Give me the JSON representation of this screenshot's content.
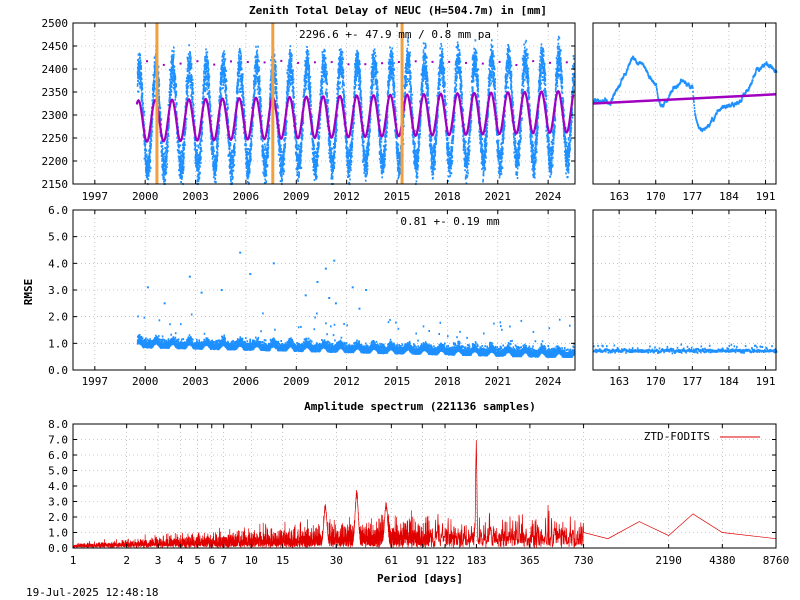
{
  "top_title": "Zenith Total Delay of NEUC (H=504.7m) in [mm]",
  "spectrum_title": "Amplitude spectrum (221136 samples)",
  "timestamp": "19-Jul-2025 12:48:18",
  "colors": {
    "data": "#1e90ff",
    "fit": "#a000c0",
    "break": "#f0a040",
    "spectrum": "#e00000",
    "grid": "#a0a0a0"
  },
  "chart_data": [
    {
      "id": "ztd",
      "type": "scatter",
      "annotation": "2296.6 +-  47.9 mm /  0.8 mm pa",
      "ylim": [
        2150,
        2500
      ],
      "yticks": [
        "2150",
        "2200",
        "2250",
        "2300",
        "2350",
        "2400",
        "2450",
        "2500"
      ],
      "xlim": [
        1995.7,
        2025.6
      ],
      "xticks": [
        "1997",
        "2000",
        "2003",
        "2006",
        "2009",
        "2012",
        "2015",
        "2018",
        "2021",
        "2024"
      ],
      "data_start": 1999.5,
      "data_end": 2025.5,
      "mean": 2296.6,
      "seasonal_amplitude": 47.9,
      "seasonal_peak": 2400,
      "seasonal_trough": 2190,
      "fit_amplitude": 45,
      "trend_per_year": 0.8,
      "breaks": [
        2000.7,
        2007.6,
        2015.3
      ]
    },
    {
      "id": "ztd_zoom",
      "type": "scatter",
      "xlim": [
        158,
        193
      ],
      "xticks": [
        "163",
        "170",
        "177",
        "184",
        "191"
      ],
      "ylim": [
        2150,
        2500
      ],
      "trend": [
        2325,
        2345
      ]
    },
    {
      "id": "rmse",
      "type": "scatter",
      "ylabel": "RMSE",
      "annotation": "0.81 +-  0.19 mm",
      "ylim": [
        0,
        6
      ],
      "yticks": [
        "0.0",
        "1.0",
        "2.0",
        "3.0",
        "4.0",
        "5.0",
        "6.0"
      ],
      "xlim": [
        1995.7,
        2025.6
      ],
      "xticks": [
        "1997",
        "2000",
        "2003",
        "2006",
        "2009",
        "2012",
        "2015",
        "2018",
        "2021",
        "2024"
      ],
      "mean": 0.81,
      "sigma": 0.19
    },
    {
      "id": "rmse_zoom",
      "type": "scatter",
      "xlim": [
        158,
        193
      ],
      "xticks": [
        "163",
        "170",
        "177",
        "184",
        "191"
      ],
      "ylim": [
        0,
        6
      ],
      "level": 0.72
    },
    {
      "id": "spectrum",
      "type": "line",
      "xscale": "log",
      "xlabel": "Period [days]",
      "xlim": [
        1,
        8760
      ],
      "xticks": [
        "1",
        "2",
        "3",
        "4",
        "5",
        "6",
        "7",
        "10",
        "15",
        "30",
        "61",
        "91",
        "122",
        "183",
        "365",
        "730",
        "2190",
        "4380",
        "8760"
      ],
      "ylim": [
        0,
        8
      ],
      "yticks": [
        "0.0",
        "1.0",
        "2.0",
        "3.0",
        "4.0",
        "5.0",
        "6.0",
        "7.0",
        "8.0"
      ],
      "legend": "ZTD-FODITS",
      "legend_position": "top-right",
      "peaks": [
        {
          "period": 182.6,
          "amplitude": 7.2
        },
        {
          "period": 39,
          "amplitude": 3.8
        },
        {
          "period": 57,
          "amplitude": 3.0
        },
        {
          "period": 26,
          "amplitude": 2.9
        }
      ],
      "tail": [
        {
          "period": 730,
          "amplitude": 1.0
        },
        {
          "period": 1000,
          "amplitude": 0.6
        },
        {
          "period": 1500,
          "amplitude": 1.7
        },
        {
          "period": 2190,
          "amplitude": 0.8
        },
        {
          "period": 3000,
          "amplitude": 2.2
        },
        {
          "period": 4380,
          "amplitude": 1.0
        },
        {
          "period": 8760,
          "amplitude": 0.6
        }
      ]
    }
  ]
}
